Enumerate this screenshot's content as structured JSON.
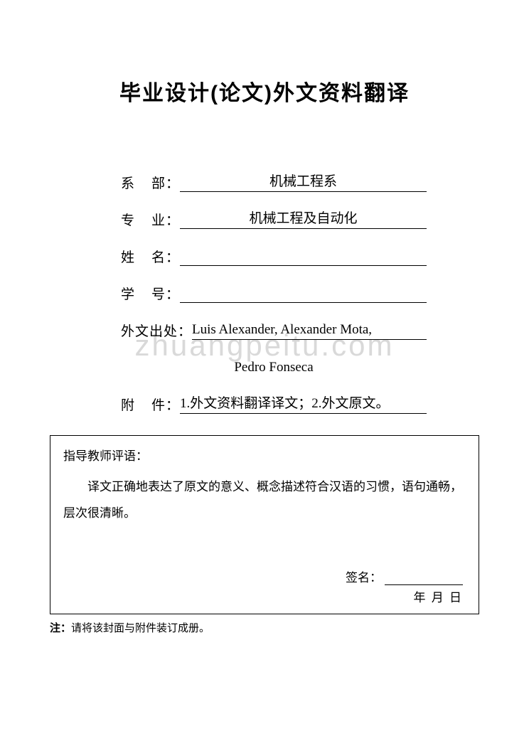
{
  "title": "毕业设计(论文)外文资料翻译",
  "title_fontsize": 30,
  "form": {
    "label_fontsize": 19,
    "rows": [
      {
        "label": "系    部：",
        "value": "机械工程系"
      },
      {
        "label": "专    业：",
        "value": "机械工程及自动化"
      },
      {
        "label": "姓    名：",
        "value": ""
      },
      {
        "label": "学    号：",
        "value": ""
      }
    ],
    "source": {
      "label": "外文出处：",
      "line1": "Luis Alexander, Alexander Mota,",
      "line2": "Pedro Fonseca"
    },
    "attachment": {
      "label": "附    件：",
      "value": "1.外文资料翻译译文；2.外文原文。"
    }
  },
  "comment": {
    "heading": "指导教师评语：",
    "body": "译文正确地表达了原文的意义、概念描述符合汉语的习惯，语句通畅，层次很清晰。",
    "sign_label": "签名：",
    "date_text": "年    月    日",
    "fontsize": 17
  },
  "note": {
    "label": "注：",
    "text": "请将该封面与附件装订成册。",
    "fontsize": 15
  },
  "watermark": "zhuangpeitu.com",
  "colors": {
    "text": "#000000",
    "background": "#ffffff",
    "watermark": "#d9d9d9",
    "border": "#000000"
  }
}
